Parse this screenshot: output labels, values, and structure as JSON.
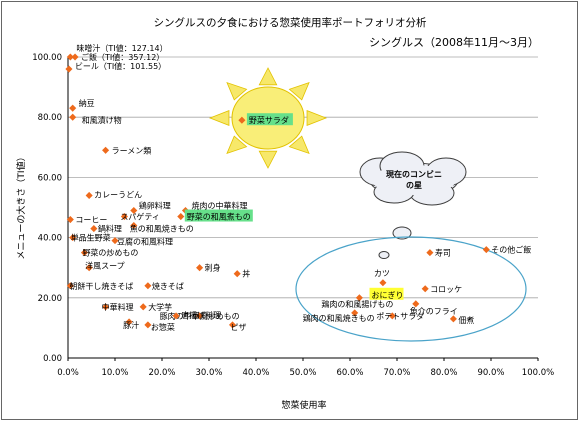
{
  "chart_data": {
    "type": "scatter",
    "title": "シングルスの夕食における惣菜使用率ポートフォリオ分析",
    "subtitle": "シングルス（2008年11月～3月）",
    "xlabel": "惣菜使用率",
    "ylabel": "メニューの大きさ（TI値）",
    "xlim": [
      0,
      100
    ],
    "ylim": [
      0,
      100
    ],
    "x_ticks": [
      "0.0%",
      "10.0%",
      "20.0%",
      "30.0%",
      "40.0%",
      "50.0%",
      "60.0%",
      "70.0%",
      "80.0%",
      "90.0%",
      "100.0%"
    ],
    "y_ticks": [
      "0.00",
      "20.00",
      "40.00",
      "60.00",
      "80.00",
      "100.00"
    ],
    "grid": true,
    "marker_color": "#ee6a1c",
    "highlight_color": "#66e08a",
    "highlight_yellow": "#ffff33",
    "sun_label": "野菜サラダ",
    "cloud_label": "現在のコンビニの星",
    "points": [
      {
        "label": "味噌汁（TI値：127.14）",
        "x": 0.5,
        "y": 100
      },
      {
        "label": "ご飯（TI値：357.12）",
        "x": 1.5,
        "y": 100
      },
      {
        "label": "ビール（TI値：101.55）",
        "x": 0.2,
        "y": 96
      },
      {
        "label": "納豆",
        "x": 1.0,
        "y": 83
      },
      {
        "label": "和風漬け物",
        "x": 1.0,
        "y": 80
      },
      {
        "label": "野菜サラダ",
        "x": 37,
        "y": 79
      },
      {
        "label": "ラーメン類",
        "x": 8,
        "y": 69
      },
      {
        "label": "カレーうどん",
        "x": 4.5,
        "y": 54
      },
      {
        "label": "鶏卵料理",
        "x": 14,
        "y": 49
      },
      {
        "label": "焼肉の中華料理",
        "x": 25,
        "y": 49
      },
      {
        "label": "スパゲティ",
        "x": 12,
        "y": 47
      },
      {
        "label": "野菜の和風煮もの",
        "x": 24,
        "y": 47
      },
      {
        "label": "コーヒー",
        "x": 0.5,
        "y": 46
      },
      {
        "label": "魚の和風焼きもの",
        "x": 14,
        "y": 44
      },
      {
        "label": "鍋料理",
        "x": 5.5,
        "y": 43
      },
      {
        "label": "単品生野菜",
        "x": 1.0,
        "y": 40
      },
      {
        "label": "豆腐の和風料理",
        "x": 10,
        "y": 39
      },
      {
        "label": "野菜の炒めもの",
        "x": 3.5,
        "y": 35
      },
      {
        "label": "洋風スープ",
        "x": 4.5,
        "y": 30
      },
      {
        "label": "刺身",
        "x": 28,
        "y": 30
      },
      {
        "label": "丼",
        "x": 36,
        "y": 28
      },
      {
        "label": "朝餅干し焼きそば",
        "x": 0.5,
        "y": 24
      },
      {
        "label": "焼きそば",
        "x": 17,
        "y": 24
      },
      {
        "label": "中華料理",
        "x": 8,
        "y": 17
      },
      {
        "label": "大学芋",
        "x": 16,
        "y": 17
      },
      {
        "label": "豚肉の中華風炒めもの",
        "x": 28,
        "y": 14
      },
      {
        "label": "唐揚げ料理",
        "x": 23,
        "y": 14
      },
      {
        "label": "豚汁",
        "x": 13,
        "y": 12
      },
      {
        "label": "ピザ",
        "x": 35,
        "y": 11
      },
      {
        "label": "お惣菜",
        "x": 17,
        "y": 11
      },
      {
        "label": "寿司",
        "x": 77,
        "y": 35
      },
      {
        "label": "その他ご飯",
        "x": 89,
        "y": 36
      },
      {
        "label": "カツ",
        "x": 67,
        "y": 25
      },
      {
        "label": "おにぎり",
        "x": 65,
        "y": 21
      },
      {
        "label": "コロッケ",
        "x": 76,
        "y": 23
      },
      {
        "label": "鶏肉の和風揚げもの",
        "x": 62,
        "y": 20
      },
      {
        "label": "魚介のフライ",
        "x": 74,
        "y": 18
      },
      {
        "label": "鶏肉の和風焼きもの",
        "x": 61,
        "y": 15
      },
      {
        "label": "ポテトサラダ",
        "x": 69,
        "y": 14
      },
      {
        "label": "佃煮",
        "x": 82,
        "y": 13
      }
    ]
  }
}
